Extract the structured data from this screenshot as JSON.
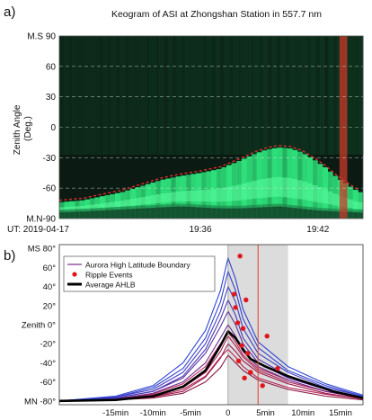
{
  "panel_a": {
    "label": "a)",
    "title": "Keogram of ASI at Zhongshan Station in 557.7 nm",
    "ylabel": "Zenith Angle\n(Deg.)",
    "date_label": "UT: 2019-04-17"
  },
  "panel_b": {
    "label": "b)",
    "legend": [
      "Aurora High Latitude Boundary",
      "Ripple Events",
      "Average AHLB"
    ]
  },
  "chart_data": [
    {
      "type": "heatmap",
      "title": "Keogram of ASI at Zhongshan Station in 557.7 nm",
      "ylabel": "Zenith Angle (Deg.)",
      "ylim": [
        -90,
        90
      ],
      "yticks": [
        "M.S 90",
        "60",
        "30",
        "0",
        "-30",
        "-60",
        "M.N-90"
      ],
      "yticks_values": [
        90,
        60,
        30,
        0,
        -30,
        -60,
        -90
      ],
      "xticks": [
        "19:36",
        "19:42"
      ],
      "xticks_minutes": [
        36,
        42
      ],
      "xlim_minutes": [
        28.8,
        44.3
      ],
      "date": "UT: 2019-04-17",
      "colormap": [
        "#0b1a12",
        "#0f3a22",
        "#1b7a45",
        "#2ee07a",
        "#5dffa0"
      ],
      "highlight_band_minutes": [
        43.1,
        43.5
      ],
      "highlight_color": "#c83a2a",
      "boundary_style": "red dashed",
      "aurora_boundary": {
        "x_minutes": [
          28.8,
          30.0,
          31.0,
          32.0,
          33.0,
          34.0,
          35.0,
          36.0,
          37.0,
          38.0,
          38.8,
          39.4,
          40.0,
          40.6,
          41.2,
          41.8,
          42.4,
          43.0,
          43.6,
          44.1
        ],
        "y_deg": [
          -72,
          -70,
          -66,
          -62,
          -56,
          -50,
          -46,
          -43,
          -39,
          -31,
          -24,
          -20,
          -18,
          -19,
          -23,
          -30,
          -38,
          -48,
          -56,
          -62
        ]
      },
      "emission_bottom": {
        "x_minutes": [
          28.8,
          30.0,
          31.0,
          32.0,
          33.0,
          34.0,
          35.0,
          36.0,
          37.0,
          38.0,
          39.0,
          40.0,
          41.0,
          42.0,
          43.0,
          44.1
        ],
        "y_deg": [
          -84,
          -83,
          -82,
          -81,
          -80,
          -79,
          -78,
          -79,
          -80,
          -80,
          -79,
          -78,
          -80,
          -82,
          -83,
          -84
        ]
      }
    },
    {
      "type": "line",
      "xlabel": "",
      "ylabel": "",
      "xlim": [
        -22.5,
        18
      ],
      "ylim": [
        -84,
        84
      ],
      "xticks": [
        "-15min",
        "-10min",
        "-5min",
        "0",
        "5min",
        "10min",
        "15min"
      ],
      "xticks_values": [
        -15,
        -10,
        -5,
        0,
        5,
        10,
        15
      ],
      "yticks": [
        "MS 80°",
        "60°",
        "40°",
        "20°",
        "Zenith 0°",
        "-20°",
        "-40°",
        "-60°",
        "MN -80°"
      ],
      "yticks_values": [
        80,
        60,
        40,
        20,
        0,
        -20,
        -40,
        -60,
        -80
      ],
      "shaded_interval": [
        0,
        8
      ],
      "shade_color": "#dcdcdc",
      "vertical_line": 4,
      "vertical_line_color": "#e0402a",
      "colors": {
        "average": "#000000",
        "ripple": "#e0161c",
        "legend_line": "#7a2a8a"
      },
      "series": [
        {
          "x": [
            -22.5,
            -15,
            -10,
            -6,
            -3,
            -1,
            0,
            1,
            2,
            4,
            8,
            13,
            18
          ],
          "y": [
            -80,
            -79,
            -77,
            -72,
            -60,
            -45,
            -32,
            -40,
            -48,
            -58,
            -68,
            -75,
            -79
          ],
          "color": "#8a1840"
        },
        {
          "x": [
            -22.5,
            -15,
            -10,
            -6,
            -3,
            -1,
            0,
            1,
            2,
            4,
            8,
            13,
            18
          ],
          "y": [
            -80,
            -79,
            -76,
            -70,
            -55,
            -35,
            -20,
            -28,
            -38,
            -50,
            -62,
            -72,
            -78
          ],
          "color": "#9a1a4a"
        },
        {
          "x": [
            -22.5,
            -15,
            -10,
            -6,
            -3,
            -1,
            0,
            1,
            2,
            4,
            8,
            13,
            18
          ],
          "y": [
            -80,
            -78,
            -74,
            -66,
            -50,
            -28,
            -12,
            -22,
            -34,
            -48,
            -60,
            -70,
            -77
          ],
          "color": "#a82050"
        },
        {
          "x": [
            -22.5,
            -15,
            -10,
            -6,
            -3,
            -1,
            0,
            1,
            2,
            4,
            8,
            13,
            18
          ],
          "y": [
            -80,
            -79,
            -76,
            -68,
            -54,
            -34,
            -26,
            -34,
            -44,
            -56,
            -66,
            -73,
            -78
          ],
          "color": "#b8245a"
        },
        {
          "x": [
            -22.5,
            -15,
            -10,
            -6,
            -3,
            -1,
            0,
            1,
            2,
            4,
            8,
            13,
            18
          ],
          "y": [
            -80,
            -78,
            -73,
            -62,
            -44,
            -20,
            -8,
            -18,
            -32,
            -46,
            -58,
            -70,
            -77
          ],
          "color": "#c02a60"
        },
        {
          "x": [
            -22.5,
            -15,
            -10,
            -6,
            -3,
            -1,
            0,
            1,
            2,
            4,
            8,
            13,
            18
          ],
          "y": [
            -80,
            -78,
            -72,
            -60,
            -40,
            -14,
            0,
            -12,
            -28,
            -44,
            -58,
            -70,
            -77
          ],
          "color": "#6e2a8e"
        },
        {
          "x": [
            -22.5,
            -15,
            -10,
            -6,
            -3,
            -1,
            0,
            1,
            2,
            4,
            8,
            13,
            18
          ],
          "y": [
            -80,
            -77,
            -70,
            -56,
            -30,
            -2,
            14,
            0,
            -20,
            -40,
            -56,
            -68,
            -76
          ],
          "color": "#5a32a0"
        },
        {
          "x": [
            -22.5,
            -15,
            -10,
            -6,
            -3,
            -1,
            0,
            1,
            2,
            4,
            8,
            13,
            18
          ],
          "y": [
            -80,
            -77,
            -70,
            -54,
            -26,
            6,
            26,
            10,
            -14,
            -36,
            -54,
            -68,
            -76
          ],
          "color": "#4a38b4"
        },
        {
          "x": [
            -22.5,
            -15,
            -10,
            -6,
            -3,
            -1,
            0,
            1,
            2,
            4,
            8,
            13,
            18
          ],
          "y": [
            -80,
            -76,
            -68,
            -50,
            -20,
            14,
            40,
            24,
            -4,
            -30,
            -50,
            -66,
            -75
          ],
          "color": "#3e3ec4"
        },
        {
          "x": [
            -22.5,
            -15,
            -10,
            -6,
            -3,
            -1,
            0,
            1,
            2,
            4,
            8,
            13,
            18
          ],
          "y": [
            -80,
            -76,
            -66,
            -46,
            -14,
            24,
            56,
            36,
            6,
            -24,
            -48,
            -64,
            -75
          ],
          "color": "#3440cc"
        },
        {
          "x": [
            -22.5,
            -15,
            -10,
            -6,
            -3,
            -1,
            0,
            1,
            2,
            4,
            8,
            13,
            18
          ],
          "y": [
            -80,
            -75,
            -64,
            -40,
            -6,
            36,
            70,
            48,
            16,
            -18,
            -44,
            -62,
            -74
          ],
          "color": "#2c44d4"
        },
        {
          "name": "Average AHLB",
          "x": [
            -22.5,
            -15,
            -10,
            -6,
            -3,
            -1,
            0,
            1,
            2,
            3,
            5,
            8,
            11,
            14,
            18
          ],
          "y": [
            -80,
            -79,
            -75,
            -65,
            -48,
            -22,
            -7,
            -14,
            -26,
            -36,
            -44,
            -54,
            -62,
            -70,
            -77
          ],
          "color": "#000000"
        }
      ],
      "ripple_events": {
        "name": "Ripple Events",
        "x": [
          1.6,
          0.8,
          1.0,
          2.4,
          1.3,
          2.0,
          5.2,
          1.8,
          2.6,
          1.4,
          3.0,
          6.6,
          2.2,
          4.6
        ],
        "y": [
          72,
          32,
          18,
          26,
          2,
          -4,
          -12,
          -22,
          -30,
          -38,
          -50,
          -46,
          -56,
          -64
        ]
      }
    }
  ]
}
